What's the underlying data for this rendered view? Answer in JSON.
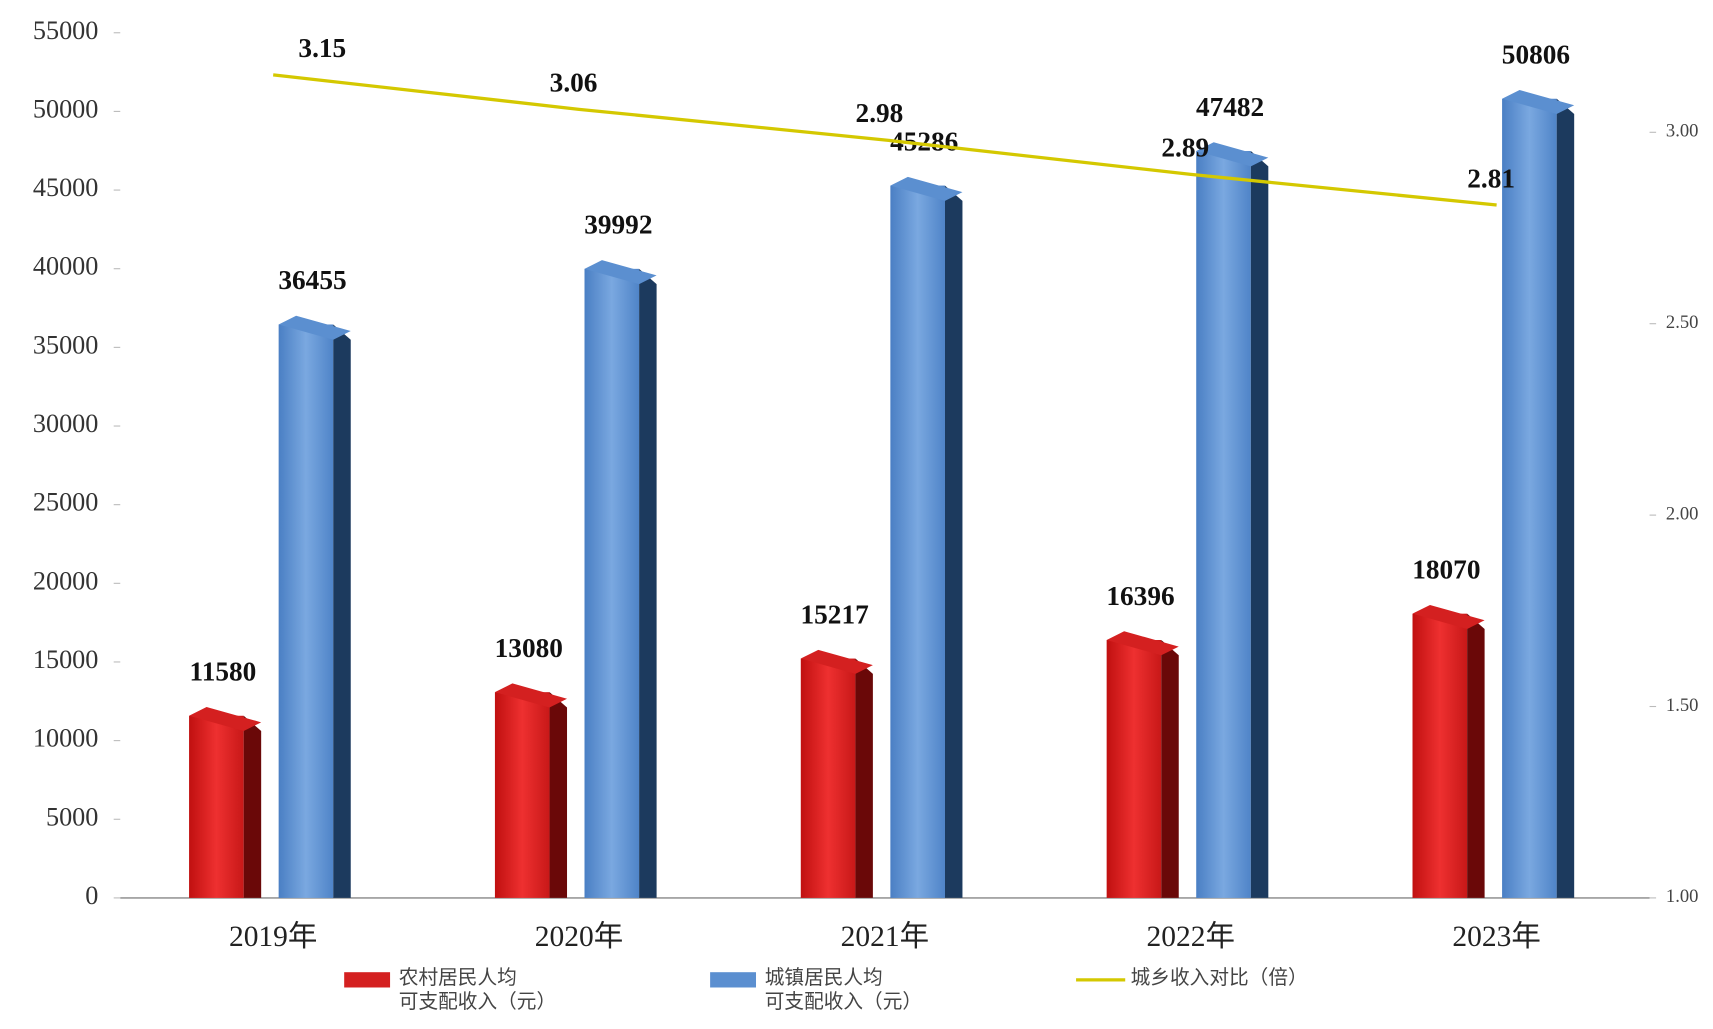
{
  "chart_data": {
    "type": "bar",
    "categories": [
      "2019年",
      "2020年",
      "2021年",
      "2022年",
      "2023年"
    ],
    "series": [
      {
        "name": "农村居民人均\n可支配收入（元）",
        "color": "#d42020",
        "values": [
          11580,
          13080,
          15217,
          16396,
          18070
        ]
      },
      {
        "name": "城镇居民人均\n可支配收入（元）",
        "color": "#5b8fd0",
        "values": [
          36455,
          39992,
          45286,
          47482,
          50806
        ]
      },
      {
        "name": "城乡收入对比（倍）",
        "color": "#d4c800",
        "type": "line",
        "axis": "y2",
        "values": [
          3.15,
          3.06,
          2.98,
          2.89,
          2.81
        ]
      }
    ],
    "ylim": [
      0,
      55000
    ],
    "yticks": [
      0,
      5000,
      10000,
      15000,
      20000,
      25000,
      30000,
      35000,
      40000,
      45000,
      50000,
      55000
    ],
    "y2lim": [
      1,
      3.26
    ],
    "y2ticks": [
      {
        "value": 1,
        "label": "1.00"
      },
      {
        "value": 1.5,
        "label": "1.50"
      },
      {
        "value": 2,
        "label": "2.00"
      },
      {
        "value": 2.5,
        "label": "2.50"
      },
      {
        "value": 3,
        "label": "3.00"
      }
    ]
  }
}
